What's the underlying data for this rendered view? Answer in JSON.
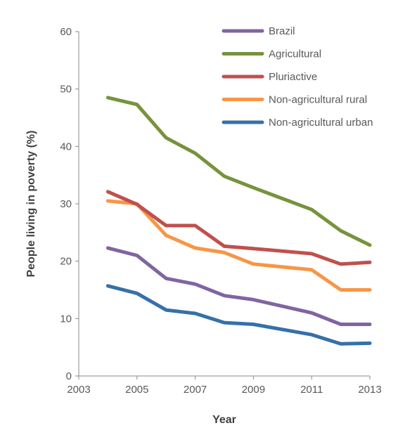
{
  "chart_data": {
    "type": "line",
    "title": "",
    "xlabel": "Year",
    "ylabel": "People living in poverty (%)",
    "xlim": [
      2003,
      2013
    ],
    "ylim": [
      0,
      60
    ],
    "xticks": [
      "2003",
      "2005",
      "2007",
      "2009",
      "2011",
      "2013"
    ],
    "yticks": [
      "0",
      "10",
      "20",
      "30",
      "40",
      "50",
      "60"
    ],
    "x": [
      2004,
      2005,
      2006,
      2007,
      2008,
      2009,
      2011,
      2012,
      2013
    ],
    "grid": false,
    "legend_position": "top-right",
    "series": [
      {
        "name": "Brazil",
        "color": "#8064a2",
        "values": [
          22.3,
          21.0,
          17.0,
          16.0,
          14.0,
          13.3,
          11.0,
          9.0,
          9.0
        ]
      },
      {
        "name": "Agricultural",
        "color": "#77933c",
        "values": [
          48.5,
          47.3,
          41.5,
          38.8,
          34.8,
          32.8,
          29.0,
          25.3,
          22.8
        ]
      },
      {
        "name": "Pluriactive",
        "color": "#c0504d",
        "values": [
          32.1,
          29.9,
          26.2,
          26.2,
          22.6,
          22.2,
          21.3,
          19.5,
          19.8
        ]
      },
      {
        "name": "Non-agricultural rural",
        "color": "#f79646",
        "values": [
          30.5,
          30.0,
          24.5,
          22.3,
          21.5,
          19.5,
          18.5,
          15.0,
          15.0
        ]
      },
      {
        "name": "Non-agricultural urban",
        "color": "#3670a9",
        "values": [
          15.7,
          14.4,
          11.5,
          10.9,
          9.3,
          9.0,
          7.2,
          5.6,
          5.7
        ]
      }
    ]
  }
}
